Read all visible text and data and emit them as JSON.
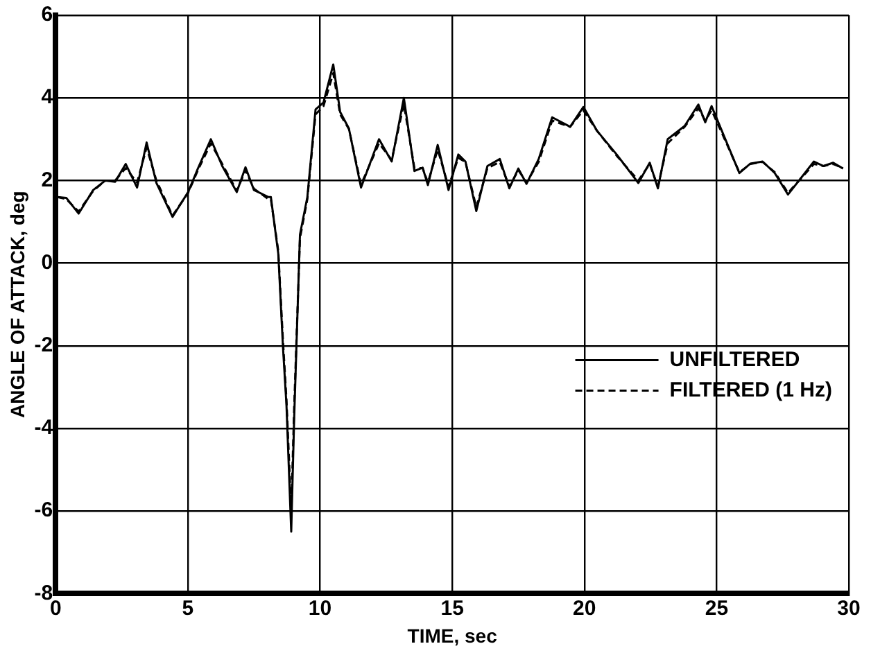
{
  "chart_data": {
    "type": "line",
    "xlabel": "TIME, sec",
    "ylabel": "ANGLE OF ATTACK, deg",
    "xlim": [
      0,
      30
    ],
    "xticks": [
      0,
      5,
      10,
      15,
      20,
      25,
      30
    ],
    "ylim": [
      -8,
      6
    ],
    "yticks": [
      -8,
      -6,
      -4,
      -2,
      0,
      2,
      4,
      6
    ],
    "grid": true,
    "legend": "center right",
    "marker": "none",
    "series": [
      {
        "name": "UNFILTERED",
        "color": "#000000",
        "line_style": "solid",
        "x": [
          0.07,
          0.4,
          0.87,
          1.42,
          1.88,
          2.25,
          2.65,
          3.08,
          3.44,
          3.81,
          4.42,
          5.01,
          5.38,
          5.87,
          6.3,
          6.85,
          7.18,
          7.5,
          8.05,
          8.14,
          8.42,
          8.6,
          8.73,
          8.91,
          9.02,
          9.24,
          9.52,
          9.83,
          10.13,
          10.5,
          10.76,
          11.09,
          11.55,
          12.23,
          12.71,
          13.17,
          13.57,
          13.88,
          14.08,
          14.45,
          14.86,
          15.23,
          15.5,
          15.91,
          16.33,
          16.8,
          17.16,
          17.5,
          17.81,
          18.27,
          18.78,
          19.46,
          19.96,
          20.48,
          21.22,
          22.04,
          22.47,
          22.78,
          23.15,
          23.79,
          24.31,
          24.57,
          24.81,
          25.27,
          25.86,
          26.28,
          26.74,
          27.2,
          27.7,
          28.68,
          29.04,
          29.41,
          29.78
        ],
        "values": [
          1.6,
          1.58,
          1.2,
          1.77,
          2.0,
          1.97,
          2.4,
          1.83,
          2.92,
          1.94,
          1.12,
          1.72,
          2.29,
          3.0,
          2.35,
          1.72,
          2.32,
          1.77,
          1.6,
          1.6,
          0.23,
          -2.06,
          -3.44,
          -6.5,
          -3.78,
          0.69,
          1.6,
          3.72,
          3.89,
          4.81,
          3.66,
          3.26,
          1.83,
          3.0,
          2.46,
          4.0,
          2.23,
          2.31,
          1.89,
          2.86,
          1.77,
          2.63,
          2.46,
          1.26,
          2.35,
          2.52,
          1.81,
          2.29,
          1.92,
          2.52,
          3.53,
          3.3,
          3.78,
          3.2,
          2.63,
          1.94,
          2.43,
          1.81,
          3.0,
          3.32,
          3.84,
          3.41,
          3.8,
          3.09,
          2.18,
          2.41,
          2.46,
          2.18,
          1.66,
          2.46,
          2.35,
          2.43,
          2.29
        ]
      },
      {
        "name": "FILTERED (1 Hz)",
        "color": "#000000",
        "line_style": "dashed",
        "x": [
          0.07,
          0.4,
          0.87,
          1.42,
          1.88,
          2.25,
          2.65,
          3.08,
          3.44,
          3.81,
          4.42,
          5.01,
          5.38,
          5.87,
          6.3,
          6.85,
          7.18,
          7.5,
          8.05,
          8.14,
          8.42,
          8.6,
          8.73,
          8.91,
          9.02,
          9.24,
          9.52,
          9.83,
          10.13,
          10.5,
          10.76,
          11.09,
          11.55,
          12.23,
          12.71,
          13.17,
          13.57,
          13.88,
          14.08,
          14.45,
          14.86,
          15.23,
          15.5,
          15.91,
          16.33,
          16.8,
          17.16,
          17.5,
          17.81,
          18.27,
          18.78,
          19.46,
          19.96,
          20.48,
          21.22,
          22.04,
          22.47,
          22.78,
          23.15,
          23.79,
          24.31,
          24.57,
          24.81,
          25.27,
          25.86,
          26.28,
          26.74,
          27.2,
          27.7,
          28.68,
          29.04,
          29.41,
          29.78
        ],
        "values": [
          1.6,
          1.55,
          1.25,
          1.75,
          2.0,
          2.0,
          2.3,
          1.95,
          2.8,
          2.0,
          1.15,
          1.7,
          2.25,
          2.9,
          2.4,
          1.75,
          2.25,
          1.8,
          1.55,
          1.55,
          0.3,
          -1.9,
          -3.3,
          -6.0,
          -3.5,
          0.6,
          1.55,
          3.6,
          3.8,
          4.6,
          3.6,
          3.25,
          1.9,
          2.9,
          2.5,
          3.85,
          2.3,
          2.3,
          1.95,
          2.75,
          1.85,
          2.55,
          2.45,
          1.35,
          2.3,
          2.45,
          1.85,
          2.25,
          1.95,
          2.45,
          3.45,
          3.3,
          3.7,
          3.2,
          2.6,
          2.0,
          2.4,
          1.85,
          2.9,
          3.3,
          3.75,
          3.45,
          3.7,
          3.05,
          2.2,
          2.4,
          2.45,
          2.2,
          1.7,
          2.4,
          2.35,
          2.4,
          2.3
        ]
      }
    ]
  }
}
